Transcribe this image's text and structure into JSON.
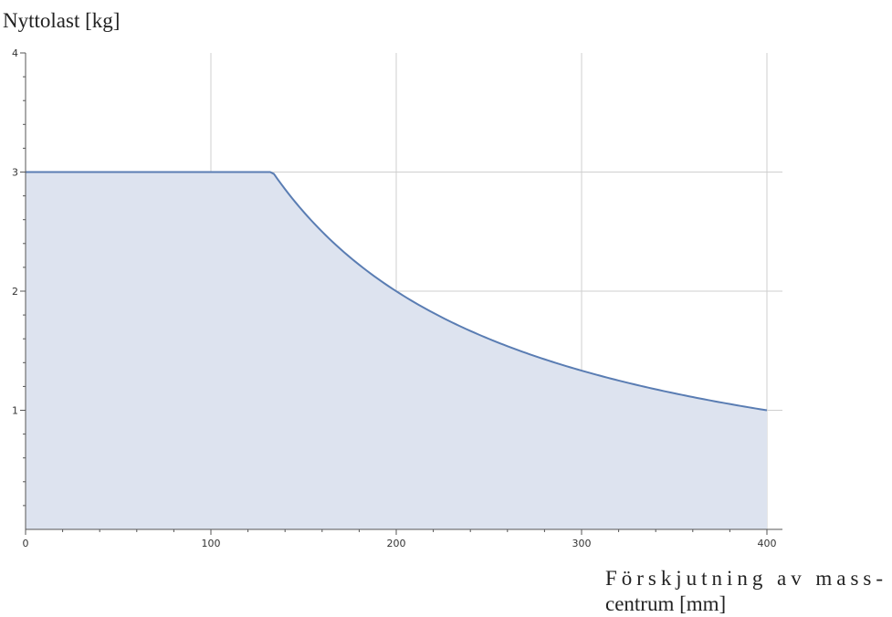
{
  "chart_data": {
    "type": "area",
    "title": "",
    "ylabel": "Nyttolast [kg]",
    "xlabel": "Förskjutning av mass-centrum [mm]",
    "xlabel_lines": [
      "Förskjutning av mass-",
      "centrum [mm]"
    ],
    "xlim": [
      0,
      400
    ],
    "ylim": [
      0,
      4
    ],
    "x_ticks": [
      0,
      100,
      200,
      300,
      400
    ],
    "y_ticks": [
      1,
      2,
      3,
      4
    ],
    "grid": true,
    "legend": "none",
    "series": [
      {
        "x": [
          0,
          50,
          100,
          133.3,
          150,
          175,
          200,
          225,
          250,
          275,
          300,
          325,
          350,
          375,
          400
        ],
        "y": [
          3,
          3,
          3,
          3,
          2.67,
          2.29,
          2.0,
          1.78,
          1.6,
          1.45,
          1.33,
          1.23,
          1.14,
          1.07,
          1.0
        ]
      }
    ],
    "colors": {
      "line": "#5a7db3",
      "fill": "#dde3ef",
      "grid": "#cfcfcf",
      "axis": "#555555"
    }
  }
}
